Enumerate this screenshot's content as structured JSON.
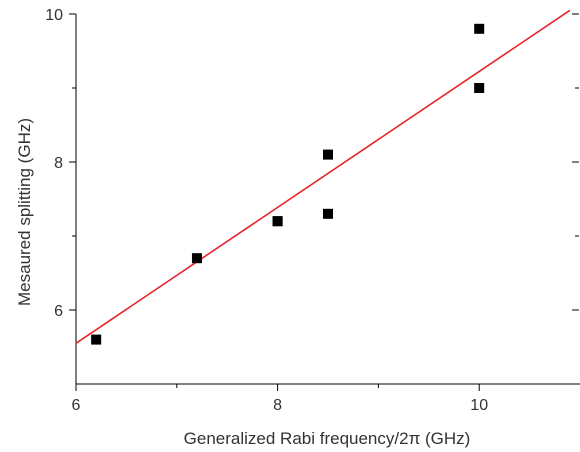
{
  "chart_data": {
    "type": "scatter",
    "title": "",
    "xlabel": "Generalized Rabi frequency/2π (GHz)",
    "ylabel": "Mesaured splitting (GHz)",
    "xlim": [
      6,
      11
    ],
    "ylim": [
      5,
      10
    ],
    "x_ticks": [
      "6",
      "8",
      "10"
    ],
    "y_ticks": [
      "6",
      "8",
      "10"
    ],
    "grid": false,
    "legend": "none",
    "series": [
      {
        "kind": "points",
        "marker": "square",
        "color": "#000000",
        "x": [
          6.2,
          7.2,
          8.0,
          8.0,
          8.5,
          8.5,
          10.0,
          10.0
        ],
        "y": [
          5.6,
          6.7,
          7.2,
          7.2,
          8.1,
          7.3,
          9.8,
          9.0
        ]
      },
      {
        "kind": "fit-line",
        "color": "#e8262a",
        "x": [
          6.0,
          10.9
        ],
        "y": [
          5.55,
          10.05
        ]
      }
    ]
  }
}
